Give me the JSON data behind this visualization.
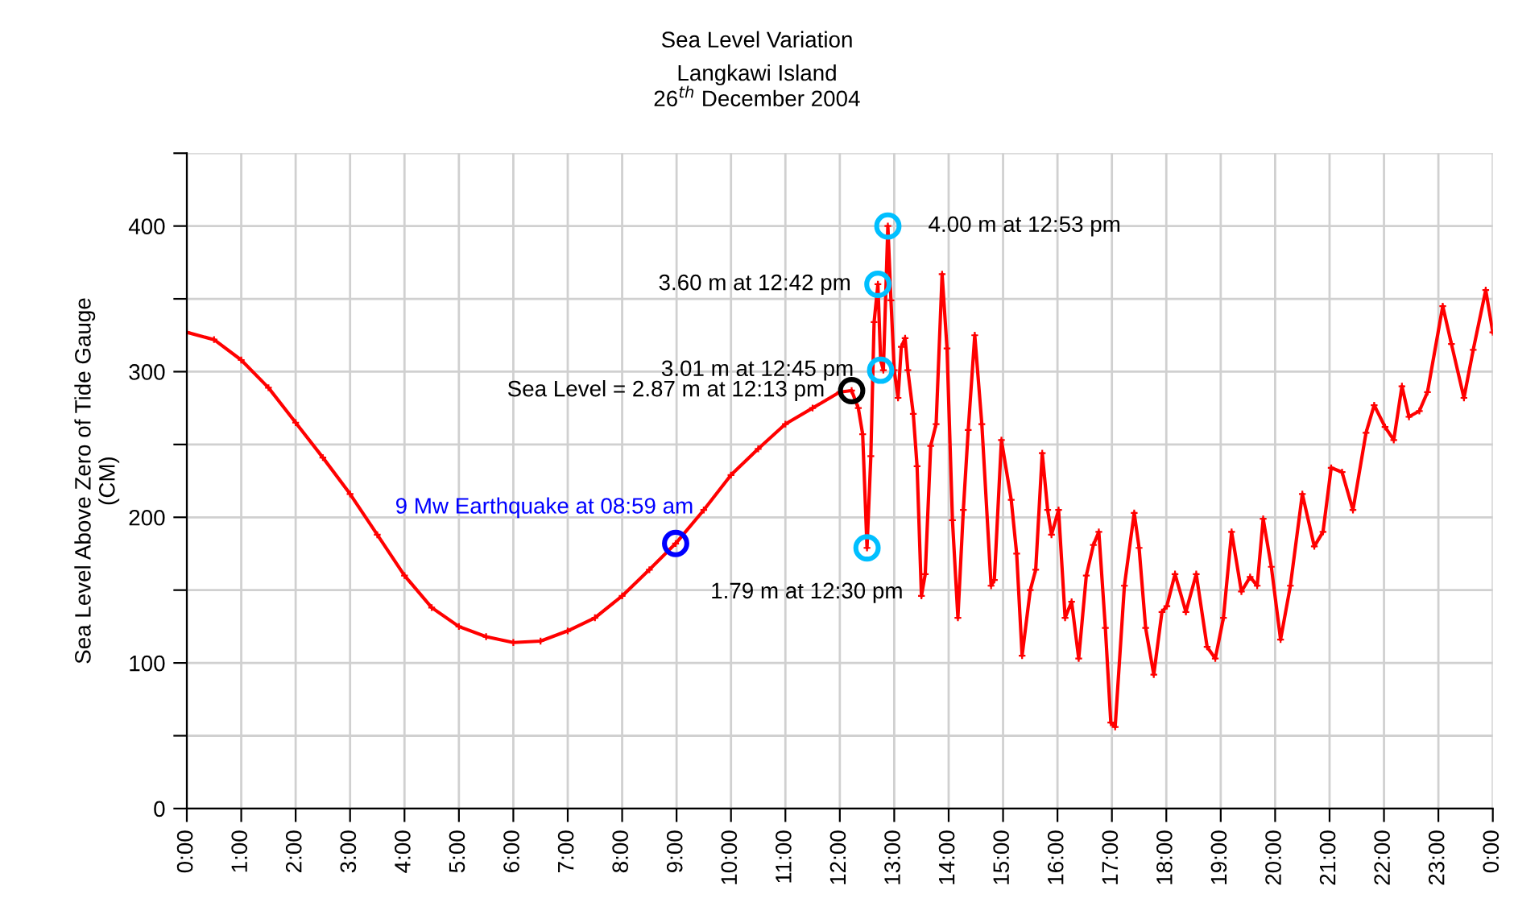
{
  "chart_data": {
    "type": "line",
    "title": "Sea Level Variation",
    "subtitle": "Langkawi Island\n26$^{th}$ December 2004",
    "ylabel": "Sea Level Above Zero of Tide Gauge\n(CM)",
    "series": [
      {
        "color": "#ff0000",
        "x": [
          0,
          0.5,
          1,
          1.5,
          2,
          2.5,
          3,
          3.5,
          4,
          4.5,
          5,
          5.5,
          6,
          6.5,
          7,
          7.5,
          8,
          8.5,
          8.983,
          9.5,
          10,
          10.5,
          11,
          11.5,
          12,
          12.217,
          12.34,
          12.42,
          12.5,
          12.57,
          12.63,
          12.7,
          12.75,
          12.8,
          12.883,
          12.94,
          13.0,
          13.07,
          13.13,
          13.2,
          13.25,
          13.35,
          13.42,
          13.5,
          13.57,
          13.67,
          13.77,
          13.88,
          13.97,
          14.07,
          14.17,
          14.27,
          14.36,
          14.48,
          14.61,
          14.78,
          14.84,
          14.97,
          15.15,
          15.25,
          15.35,
          15.5,
          15.6,
          15.72,
          15.82,
          15.89,
          16.02,
          16.14,
          16.26,
          16.39,
          16.53,
          16.66,
          16.76,
          16.88,
          16.98,
          17.06,
          17.23,
          17.41,
          17.5,
          17.62,
          17.77,
          17.92,
          18.01,
          18.16,
          18.36,
          18.55,
          18.75,
          18.9,
          19.05,
          19.2,
          19.38,
          19.54,
          19.67,
          19.78,
          19.93,
          20.1,
          20.28,
          20.5,
          20.72,
          20.88,
          21.03,
          21.23,
          21.43,
          21.67,
          21.82,
          22.02,
          22.18,
          22.33,
          22.46,
          22.65,
          22.8,
          23.08,
          23.24,
          23.47,
          23.64,
          23.87,
          24.0
        ],
        "values": [
          327,
          322,
          308,
          289,
          265,
          241,
          216,
          188,
          160,
          138,
          125,
          118,
          114,
          115,
          122,
          131,
          146,
          164,
          182,
          205,
          229,
          247,
          264,
          275,
          286,
          287,
          275,
          257,
          179,
          242,
          334,
          360,
          308,
          301,
          400,
          349,
          301,
          282,
          317,
          323,
          301,
          271,
          235,
          146,
          161,
          249,
          264,
          367,
          316,
          198,
          131,
          205,
          260,
          325,
          264,
          153,
          157,
          253,
          212,
          175,
          105,
          150,
          164,
          244,
          205,
          188,
          205,
          131,
          142,
          103,
          160,
          181,
          190,
          124,
          59,
          56,
          153,
          203,
          179,
          124,
          92,
          135,
          139,
          161,
          135,
          161,
          111,
          103,
          131,
          190,
          149,
          159,
          153,
          199,
          166,
          116,
          153,
          216,
          180,
          190,
          234,
          231,
          205,
          258,
          277,
          262,
          253,
          290,
          269,
          273,
          286,
          345,
          319,
          282,
          315,
          356,
          327
        ]
      }
    ],
    "marker": "cross",
    "xlim": [
      0,
      24
    ],
    "xticks": [
      {
        "value": 0,
        "label": "0:00"
      },
      {
        "value": 1,
        "label": "1:00"
      },
      {
        "value": 2,
        "label": "2:00"
      },
      {
        "value": 3,
        "label": "3:00"
      },
      {
        "value": 4,
        "label": "4:00"
      },
      {
        "value": 5,
        "label": "5:00"
      },
      {
        "value": 6,
        "label": "6:00"
      },
      {
        "value": 7,
        "label": "7:00"
      },
      {
        "value": 8,
        "label": "8:00"
      },
      {
        "value": 9,
        "label": "9:00"
      },
      {
        "value": 10,
        "label": "10:00"
      },
      {
        "value": 11,
        "label": "11:00"
      },
      {
        "value": 12,
        "label": "12:00"
      },
      {
        "value": 13,
        "label": "13:00"
      },
      {
        "value": 14,
        "label": "14:00"
      },
      {
        "value": 15,
        "label": "15:00"
      },
      {
        "value": 16,
        "label": "16:00"
      },
      {
        "value": 17,
        "label": "17:00"
      },
      {
        "value": 18,
        "label": "18:00"
      },
      {
        "value": 19,
        "label": "19:00"
      },
      {
        "value": 20,
        "label": "20:00"
      },
      {
        "value": 21,
        "label": "21:00"
      },
      {
        "value": 22,
        "label": "22:00"
      },
      {
        "value": 23,
        "label": "23:00"
      },
      {
        "value": 24,
        "label": "0:00"
      }
    ],
    "ylim": [
      0,
      450
    ],
    "yticks": [
      0,
      {
        "value": 50,
        "label": null
      },
      100,
      {
        "value": 150,
        "label": null
      },
      200,
      {
        "value": 250,
        "label": null
      },
      300,
      {
        "value": 350,
        "label": null
      },
      400,
      {
        "value": 450,
        "label": null
      }
    ],
    "grid": true,
    "annotations": [
      {
        "text": "9 Mw Earthquake at 08:59 am",
        "x": 8.983,
        "y": 182
      },
      {
        "text": "Sea Level = 2.87 m at 12:13 pm",
        "x": 12.217,
        "y": 287
      },
      {
        "text": "1.79 m at 12:30 pm",
        "x": 12.5,
        "y": 179
      },
      {
        "text": "3.60 m at 12:42 pm",
        "x": 12.7,
        "y": 360
      },
      {
        "text": "3.01 m at 12:45 pm",
        "x": 12.75,
        "y": 301
      },
      {
        "text": "4.00 m at 12:53 pm",
        "x": 12.883,
        "y": 400
      }
    ]
  }
}
